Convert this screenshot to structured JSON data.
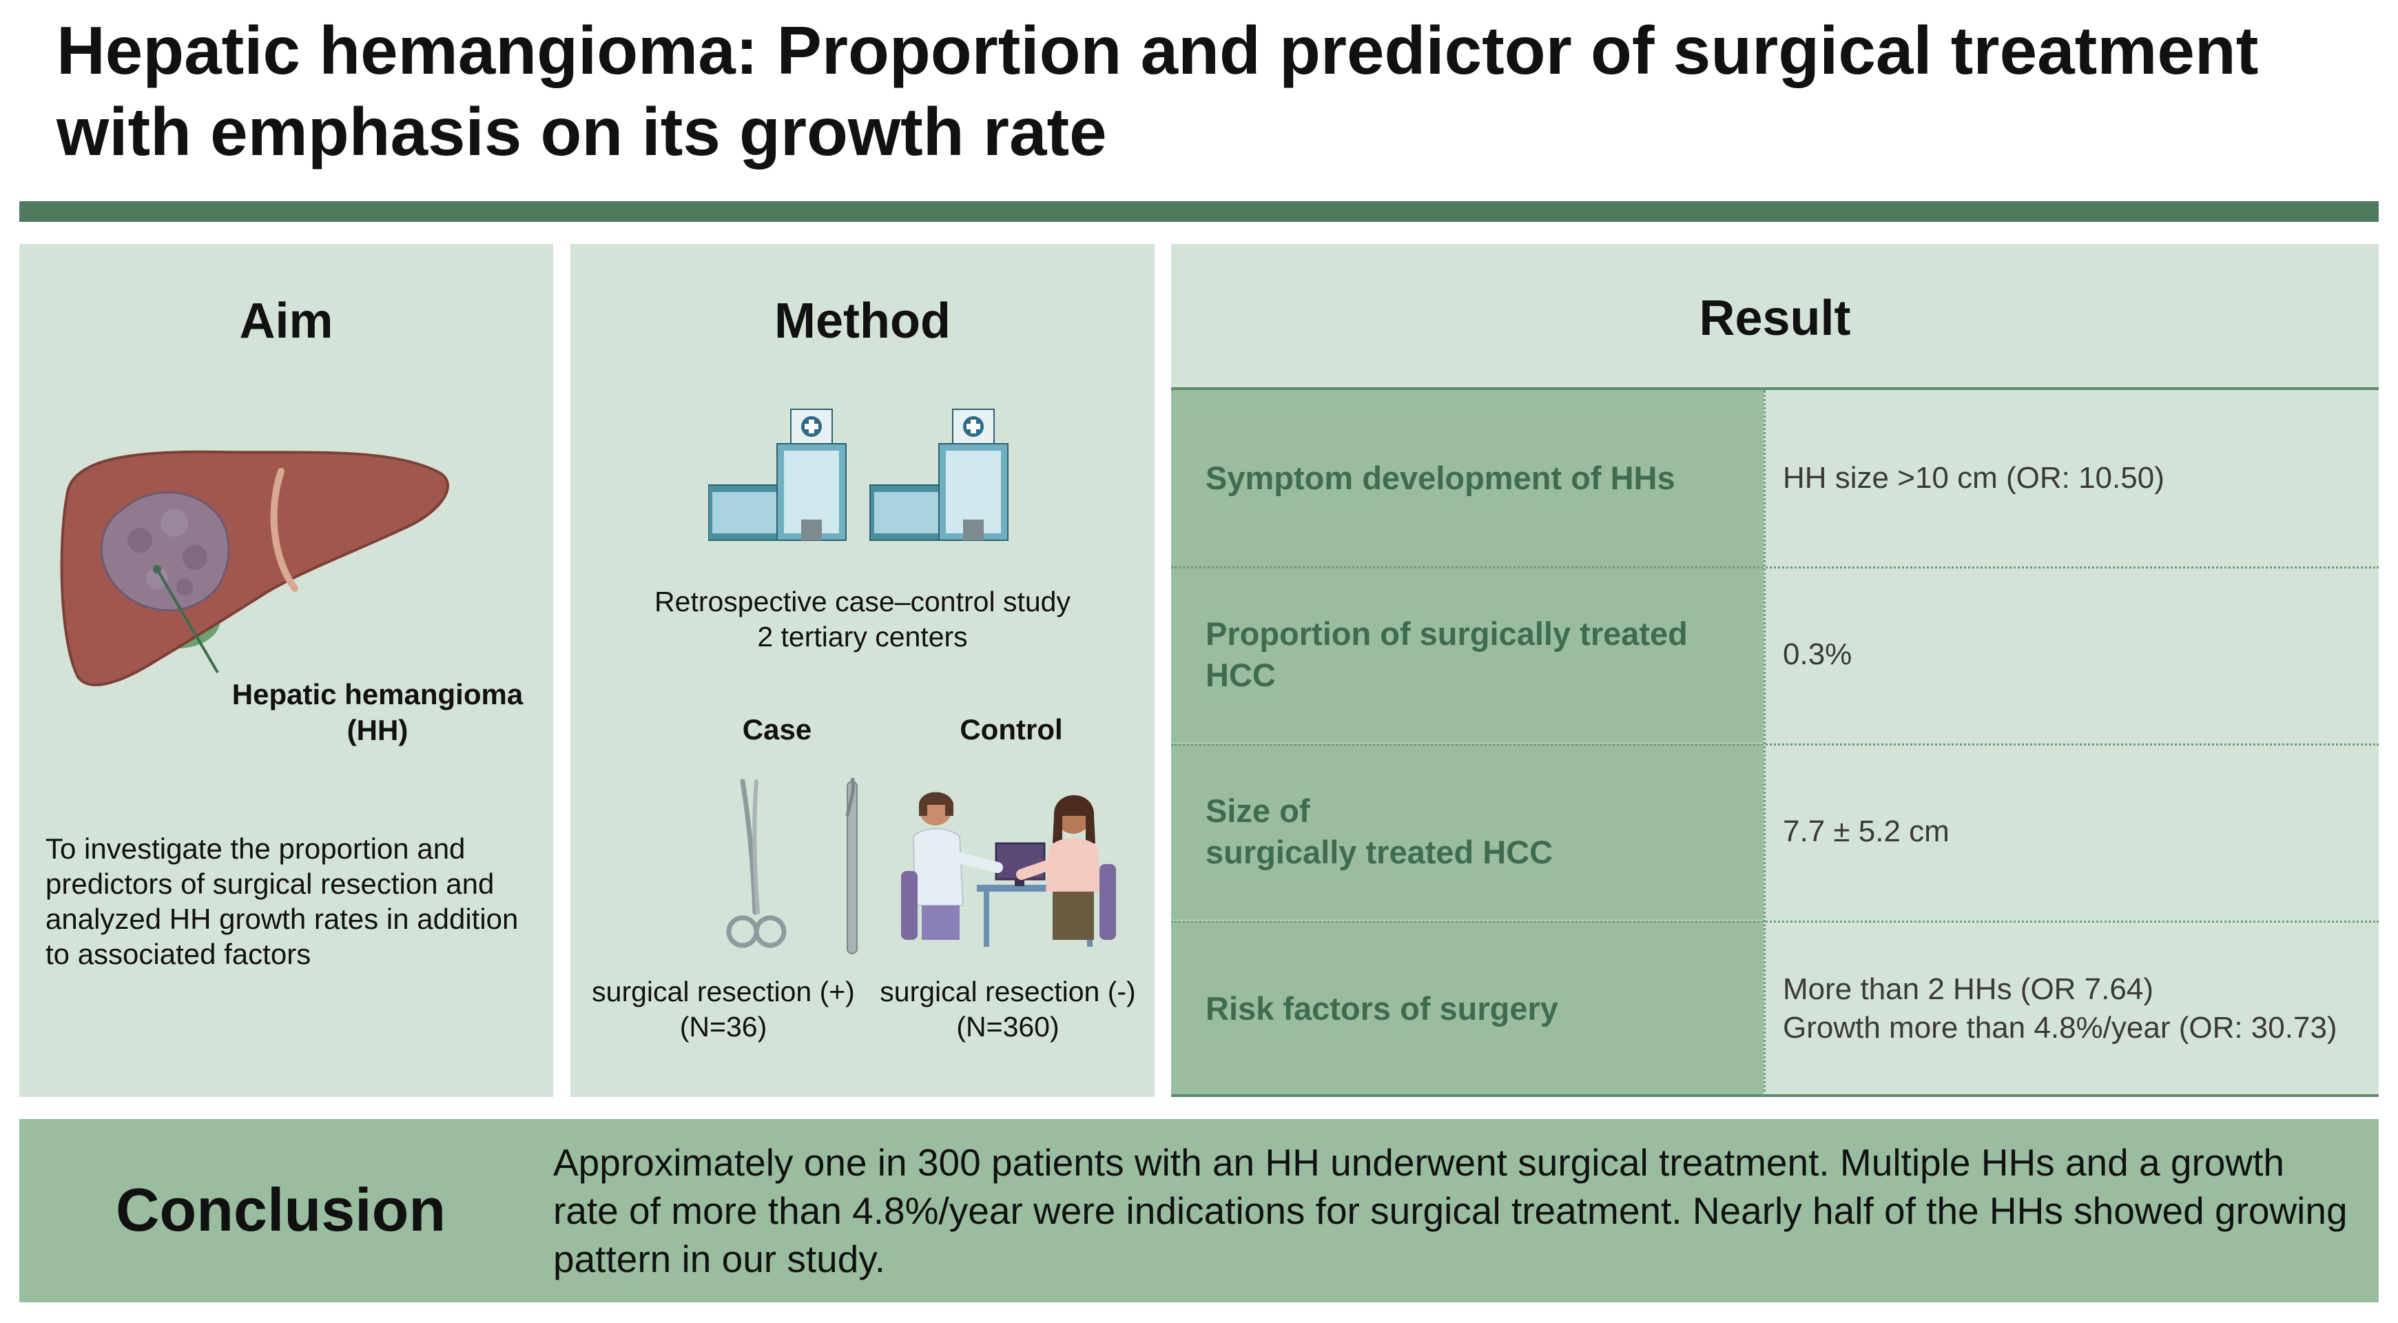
{
  "title": "Hepatic hemangioma: Proportion and predictor of surgical treatment with emphasis on its growth rate",
  "aim": {
    "heading": "Aim",
    "hh_label_line1": "Hepatic hemangioma",
    "hh_label_line2": "(HH)",
    "text": "To investigate the proportion and predictors of surgical resection and analyzed HH growth rates in addition to associated factors"
  },
  "method": {
    "heading": "Method",
    "design_line1": "Retrospective case–control study",
    "design_line2": "2 tertiary centers",
    "case_label": "Case",
    "control_label": "Control",
    "case_caption_line1": "surgical resection (+)",
    "case_caption_line2": "(N=36)",
    "control_caption_line1": "surgical resection (-)",
    "control_caption_line2": "(N=360)"
  },
  "result": {
    "heading": "Result",
    "rows": [
      {
        "label": "Symptom development of HHs",
        "value_line1": "HH size >10 cm (OR: 10.50)",
        "value_line2": ""
      },
      {
        "label": "Proportion of surgically treated HCC",
        "value_line1": "0.3%",
        "value_line2": ""
      },
      {
        "label_line1": "Size of",
        "label_line2": "surgically treated HCC",
        "value_line1": "7.7 ± 5.2 cm",
        "value_line2": ""
      },
      {
        "label": "Risk factors of surgery",
        "value_line1": "More than 2 HHs (OR 7.64)",
        "value_line2": "Growth more than 4.8%/year (OR: 30.73)"
      }
    ]
  },
  "conclusion": {
    "heading": "Conclusion",
    "text": "Approximately one in 300 patients with an HH underwent surgical treatment. Multiple HHs and a growth rate of more than 4.8%/year were indications for surgical treatment. Nearly half of the HHs showed growing pattern in our study."
  },
  "colors": {
    "panel_bg": "#d4e3d7",
    "accent_green": "#4f7a60",
    "label_green_bg": "#9bbd9f",
    "label_green_text": "#3f6c4f"
  }
}
